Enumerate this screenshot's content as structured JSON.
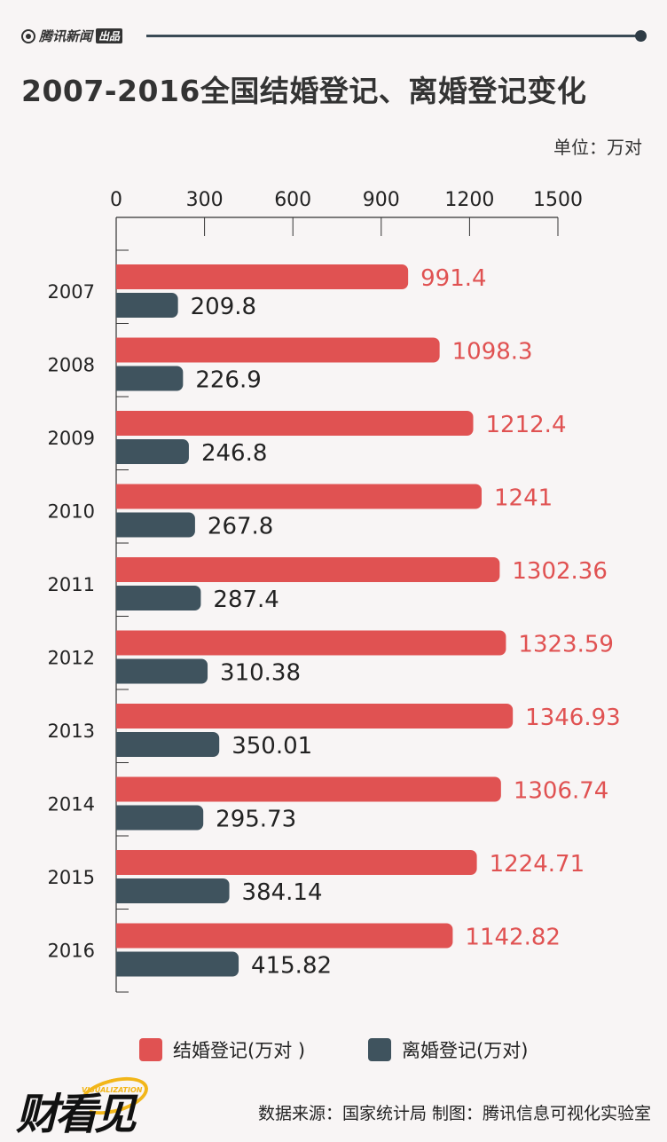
{
  "header": {
    "logo_text": "腾讯新闻",
    "logo_tag": "出品"
  },
  "title": "2007-2016全国结婚登记、离婚登记变化",
  "unit": "单位：万对",
  "chart_data": {
    "type": "bar",
    "orientation": "horizontal",
    "categories": [
      "2007",
      "2008",
      "2009",
      "2010",
      "2011",
      "2012",
      "2013",
      "2014",
      "2015",
      "2016"
    ],
    "series": [
      {
        "name": "结婚登记(万对 )",
        "color": "#e05252",
        "values": [
          991.4,
          1098.3,
          1212.4,
          1241,
          1302.36,
          1323.59,
          1346.93,
          1306.74,
          1224.71,
          1142.82
        ],
        "labels": [
          "991.4",
          "1098.3",
          "1212.4",
          "1241",
          "1302.36",
          "1323.59",
          "1346.93",
          "1306.74",
          "1224.71",
          "1142.82"
        ]
      },
      {
        "name": "离婚登记(万对)",
        "color": "#3f535e",
        "values": [
          209.8,
          226.9,
          246.8,
          267.8,
          287.4,
          310.38,
          350.01,
          295.73,
          384.14,
          415.82
        ],
        "labels": [
          "209.8",
          "226.9",
          "246.8",
          "267.8",
          "287.4",
          "310.38",
          "350.01",
          "295.73",
          "384.14",
          "415.82"
        ]
      }
    ],
    "xaxis": {
      "ticks": [
        0,
        300,
        600,
        900,
        1200,
        1500
      ],
      "tick_labels": [
        "0",
        "300",
        "600",
        "900",
        "1200",
        "1500"
      ],
      "range": [
        0,
        1500
      ],
      "position": "top"
    },
    "grid": false,
    "legend_position": "bottom"
  },
  "legend": {
    "marriage": "结婚登记(万对 )",
    "divorce": "离婚登记(万对)"
  },
  "footer": {
    "logo_text": "财看见",
    "logo_sub": "VISUALIZATION",
    "source": "数据来源：国家统计局  制图：腾讯信息可视化实验室"
  }
}
